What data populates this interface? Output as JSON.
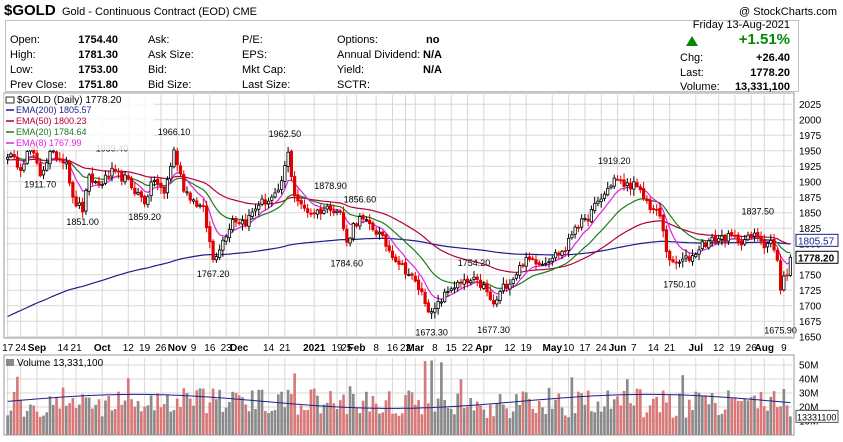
{
  "header": {
    "symbol": "$GOLD",
    "name": "Gold - Continuous Contract (EOD)",
    "exchange": "CME",
    "copyright": "@ StockCharts.com"
  },
  "quote": {
    "open_label": "Open:",
    "open": "1754.40",
    "high_label": "High:",
    "high": "1781.30",
    "low_label": "Low:",
    "low": "1753.00",
    "prev_label": "Prev Close:",
    "prev": "1751.80",
    "ask_label": "Ask:",
    "ask": "",
    "asksize_label": "Ask Size:",
    "asksize": "",
    "bid_label": "Bid:",
    "bid": "",
    "bidsize_label": "Bid Size:",
    "bidsize": "",
    "pe_label": "P/E:",
    "pe": "",
    "eps_label": "EPS:",
    "eps": "",
    "mktcap_label": "Mkt Cap:",
    "mktcap": "",
    "lastsize_label": "Last Size:",
    "lastsize": "",
    "options_label": "Options:",
    "options": "no",
    "div_label": "Annual Dividend:",
    "div": "N/A",
    "yield_label": "Yield:",
    "yield": "N/A",
    "sctr_label": "SCTR:",
    "sctr": "",
    "date": "Friday  13-Aug-2021",
    "pct": "+1.51%",
    "chg_label": "Chg:",
    "chg": "+26.40",
    "last_label": "Last:",
    "last": "1778.20",
    "volume_label": "Volume:",
    "volume": "13,331,100"
  },
  "colors": {
    "up": "#000000",
    "down": "#e00000",
    "ema200": "#1a1f8a",
    "ema50": "#b3003c",
    "ema20": "#1f7a1f",
    "ema8": "#e020e0",
    "vol_up": "#8a8a8a",
    "vol_down": "#d87878",
    "vol_line": "#1a1f8a",
    "grid": "#d8d8d8"
  },
  "chart_data": [
    {
      "type": "candlestick",
      "legend_title": "$GOLD (Daily) 1778.20",
      "legend": [
        {
          "name": "EMA(200) 1805.57",
          "color": "#1a1f8a"
        },
        {
          "name": "EMA(50) 1800.23",
          "color": "#b3003c"
        },
        {
          "name": "EMA(20) 1784.64",
          "color": "#1f7a1f"
        },
        {
          "name": "EMA(8) 1767.99",
          "color": "#e020e0"
        }
      ],
      "y_ticks": [
        1650,
        1675,
        1700,
        1725,
        1750,
        1775,
        1800,
        1825,
        1850,
        1875,
        1900,
        1925,
        1950,
        1975,
        2000,
        2025
      ],
      "ylim": [
        1648,
        2040
      ],
      "x_labels": [
        {
          "i": 0,
          "t": "17"
        },
        {
          "i": 4,
          "t": "24"
        },
        {
          "i": 9,
          "t": "Sep"
        },
        {
          "i": 17,
          "t": "14"
        },
        {
          "i": 21,
          "t": "21"
        },
        {
          "i": 29,
          "t": "Oct"
        },
        {
          "i": 37,
          "t": "12"
        },
        {
          "i": 42,
          "t": "19"
        },
        {
          "i": 47,
          "t": "26"
        },
        {
          "i": 52,
          "t": "Nov"
        },
        {
          "i": 57,
          "t": "9"
        },
        {
          "i": 62,
          "t": "16"
        },
        {
          "i": 67,
          "t": "23"
        },
        {
          "i": 71,
          "t": "Dec"
        },
        {
          "i": 80,
          "t": "14"
        },
        {
          "i": 85,
          "t": "21"
        },
        {
          "i": 94,
          "t": "2021"
        },
        {
          "i": 101,
          "t": "19"
        },
        {
          "i": 104,
          "t": "25"
        },
        {
          "i": 107,
          "t": "Feb"
        },
        {
          "i": 113,
          "t": "8"
        },
        {
          "i": 118,
          "t": "16"
        },
        {
          "i": 122,
          "t": "22"
        },
        {
          "i": 125,
          "t": "Mar"
        },
        {
          "i": 131,
          "t": "8"
        },
        {
          "i": 136,
          "t": "15"
        },
        {
          "i": 141,
          "t": "22"
        },
        {
          "i": 146,
          "t": "Apr"
        },
        {
          "i": 154,
          "t": "12"
        },
        {
          "i": 159,
          "t": "19"
        },
        {
          "i": 167,
          "t": "May"
        },
        {
          "i": 172,
          "t": "10"
        },
        {
          "i": 177,
          "t": "17"
        },
        {
          "i": 182,
          "t": "24"
        },
        {
          "i": 187,
          "t": "Jun"
        },
        {
          "i": 192,
          "t": "7"
        },
        {
          "i": 198,
          "t": "14"
        },
        {
          "i": 203,
          "t": "21"
        },
        {
          "i": 211,
          "t": "Jul"
        },
        {
          "i": 218,
          "t": "12"
        },
        {
          "i": 223,
          "t": "19"
        },
        {
          "i": 228,
          "t": "26"
        },
        {
          "i": 232,
          "t": "Aug"
        },
        {
          "i": 238,
          "t": "9"
        }
      ],
      "annotations": [
        {
          "i": 10,
          "v": 1911.7,
          "t": "1911.70",
          "pos": "below"
        },
        {
          "i": 23,
          "v": 1851.0,
          "t": "1851.00",
          "pos": "below"
        },
        {
          "i": 32,
          "v": 1939.4,
          "t": "1939.40",
          "pos": "above"
        },
        {
          "i": 42,
          "v": 1859.2,
          "t": "1859.20",
          "pos": "below"
        },
        {
          "i": 51,
          "v": 1966.1,
          "t": "1966.10",
          "pos": "above"
        },
        {
          "i": 63,
          "v": 1767.2,
          "t": "1767.20",
          "pos": "below"
        },
        {
          "i": 85,
          "v": 1962.5,
          "t": "1962.50",
          "pos": "above"
        },
        {
          "i": 99,
          "v": 1878.9,
          "t": "1878.90",
          "pos": "above"
        },
        {
          "i": 104,
          "v": 1784.6,
          "t": "1784.60",
          "pos": "below"
        },
        {
          "i": 108,
          "v": 1856.6,
          "t": "1856.60",
          "pos": "above"
        },
        {
          "i": 130,
          "v": 1673.3,
          "t": "1673.30",
          "pos": "below"
        },
        {
          "i": 143,
          "v": 1754.2,
          "t": "1754.20",
          "pos": "above"
        },
        {
          "i": 149,
          "v": 1677.3,
          "t": "1677.30",
          "pos": "below"
        },
        {
          "i": 186,
          "v": 1919.2,
          "t": "1919.20",
          "pos": "above"
        },
        {
          "i": 206,
          "v": 1750.1,
          "t": "1750.10",
          "pos": "below"
        },
        {
          "i": 230,
          "v": 1837.5,
          "t": "1837.50",
          "pos": "above"
        },
        {
          "i": 237,
          "v": 1675.9,
          "t": "1675.90",
          "pos": "below"
        }
      ],
      "keypoints": [
        [
          0,
          1945
        ],
        [
          4,
          1925
        ],
        [
          7,
          1955
        ],
        [
          10,
          1912
        ],
        [
          13,
          1945
        ],
        [
          18,
          1935
        ],
        [
          20,
          1870
        ],
        [
          23,
          1855
        ],
        [
          25,
          1905
        ],
        [
          28,
          1895
        ],
        [
          32,
          1915
        ],
        [
          36,
          1905
        ],
        [
          40,
          1880
        ],
        [
          42,
          1868
        ],
        [
          45,
          1905
        ],
        [
          48,
          1880
        ],
        [
          51,
          1950
        ],
        [
          54,
          1890
        ],
        [
          57,
          1870
        ],
        [
          60,
          1855
        ],
        [
          63,
          1775
        ],
        [
          66,
          1805
        ],
        [
          69,
          1840
        ],
        [
          73,
          1835
        ],
        [
          77,
          1865
        ],
        [
          80,
          1870
        ],
        [
          83,
          1880
        ],
        [
          86,
          1945
        ],
        [
          88,
          1880
        ],
        [
          90,
          1860
        ],
        [
          93,
          1850
        ],
        [
          97,
          1855
        ],
        [
          99,
          1860
        ],
        [
          102,
          1850
        ],
        [
          104,
          1800
        ],
        [
          106,
          1830
        ],
        [
          108,
          1840
        ],
        [
          111,
          1830
        ],
        [
          114,
          1815
        ],
        [
          117,
          1790
        ],
        [
          120,
          1770
        ],
        [
          124,
          1745
        ],
        [
          127,
          1720
        ],
        [
          130,
          1685
        ],
        [
          133,
          1710
        ],
        [
          136,
          1730
        ],
        [
          139,
          1735
        ],
        [
          143,
          1740
        ],
        [
          146,
          1730
        ],
        [
          149,
          1700
        ],
        [
          152,
          1730
        ],
        [
          155,
          1745
        ],
        [
          158,
          1770
        ],
        [
          161,
          1775
        ],
        [
          164,
          1770
        ],
        [
          167,
          1780
        ],
        [
          171,
          1790
        ],
        [
          174,
          1830
        ],
        [
          177,
          1835
        ],
        [
          180,
          1860
        ],
        [
          183,
          1880
        ],
        [
          186,
          1905
        ],
        [
          189,
          1895
        ],
        [
          192,
          1895
        ],
        [
          195,
          1875
        ],
        [
          197,
          1860
        ],
        [
          200,
          1845
        ],
        [
          202,
          1790
        ],
        [
          204,
          1765
        ],
        [
          206,
          1770
        ],
        [
          208,
          1775
        ],
        [
          210,
          1780
        ],
        [
          213,
          1800
        ],
        [
          216,
          1805
        ],
        [
          219,
          1810
        ],
        [
          222,
          1810
        ],
        [
          225,
          1805
        ],
        [
          228,
          1810
        ],
        [
          230,
          1815
        ],
        [
          232,
          1800
        ],
        [
          234,
          1805
        ],
        [
          236,
          1770
        ],
        [
          237,
          1730
        ],
        [
          238,
          1745
        ],
        [
          239,
          1750
        ],
        [
          240,
          1778
        ]
      ],
      "last_value": 1778.2,
      "right_marker": {
        "value": 1778.2,
        "t": "1778.20"
      },
      "right_marker2": {
        "value": 1805.57,
        "t": "1805.57"
      }
    },
    {
      "type": "bar",
      "title": "Volume 13,331,100",
      "y_ticks": [
        {
          "v": 50,
          "t": "50M"
        },
        {
          "v": 40,
          "t": "40M"
        },
        {
          "v": 30,
          "t": "30M"
        },
        {
          "v": 20,
          "t": "20M"
        },
        {
          "v": 10,
          "t": "10M"
        }
      ],
      "ylim": [
        0,
        55
      ],
      "last_label": "13331100"
    }
  ]
}
